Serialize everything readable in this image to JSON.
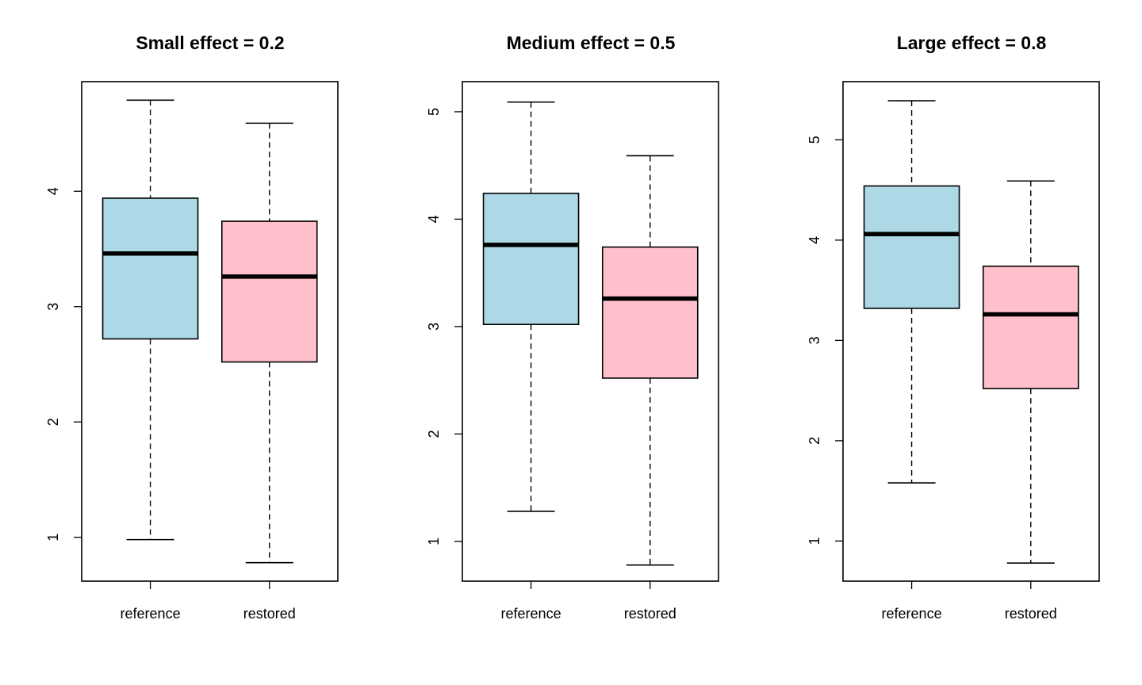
{
  "chart_data": [
    {
      "type": "boxplot",
      "title": "Small effect = 0.2",
      "categories": [
        "reference",
        "restored"
      ],
      "series": [
        {
          "category": "reference",
          "min": 0.98,
          "q1": 2.72,
          "median": 3.46,
          "q3": 3.94,
          "max": 4.79
        },
        {
          "category": "restored",
          "min": 0.78,
          "q1": 2.52,
          "median": 3.26,
          "q3": 3.74,
          "max": 4.59
        }
      ],
      "yticks": [
        1,
        2,
        3,
        4
      ],
      "ylim": [
        0.62,
        4.95
      ]
    },
    {
      "type": "boxplot",
      "title": "Medium effect = 0.5",
      "categories": [
        "reference",
        "restored"
      ],
      "series": [
        {
          "category": "reference",
          "min": 1.28,
          "q1": 3.02,
          "median": 3.76,
          "q3": 4.24,
          "max": 5.09
        },
        {
          "category": "restored",
          "min": 0.78,
          "q1": 2.52,
          "median": 3.26,
          "q3": 3.74,
          "max": 4.59
        }
      ],
      "yticks": [
        1,
        2,
        3,
        4,
        5
      ],
      "ylim": [
        0.63,
        5.28
      ]
    },
    {
      "type": "boxplot",
      "title": "Large effect = 0.8",
      "categories": [
        "reference",
        "restored"
      ],
      "series": [
        {
          "category": "reference",
          "min": 1.58,
          "q1": 3.32,
          "median": 4.06,
          "q3": 4.54,
          "max": 5.39
        },
        {
          "category": "restored",
          "min": 0.78,
          "q1": 2.52,
          "median": 3.26,
          "q3": 3.74,
          "max": 4.59
        }
      ],
      "yticks": [
        1,
        2,
        3,
        4,
        5
      ],
      "ylim": [
        0.6,
        5.58
      ]
    }
  ],
  "colors": {
    "reference": "#add8e6",
    "restored": "#ffc0cb",
    "outline": "#000000"
  }
}
